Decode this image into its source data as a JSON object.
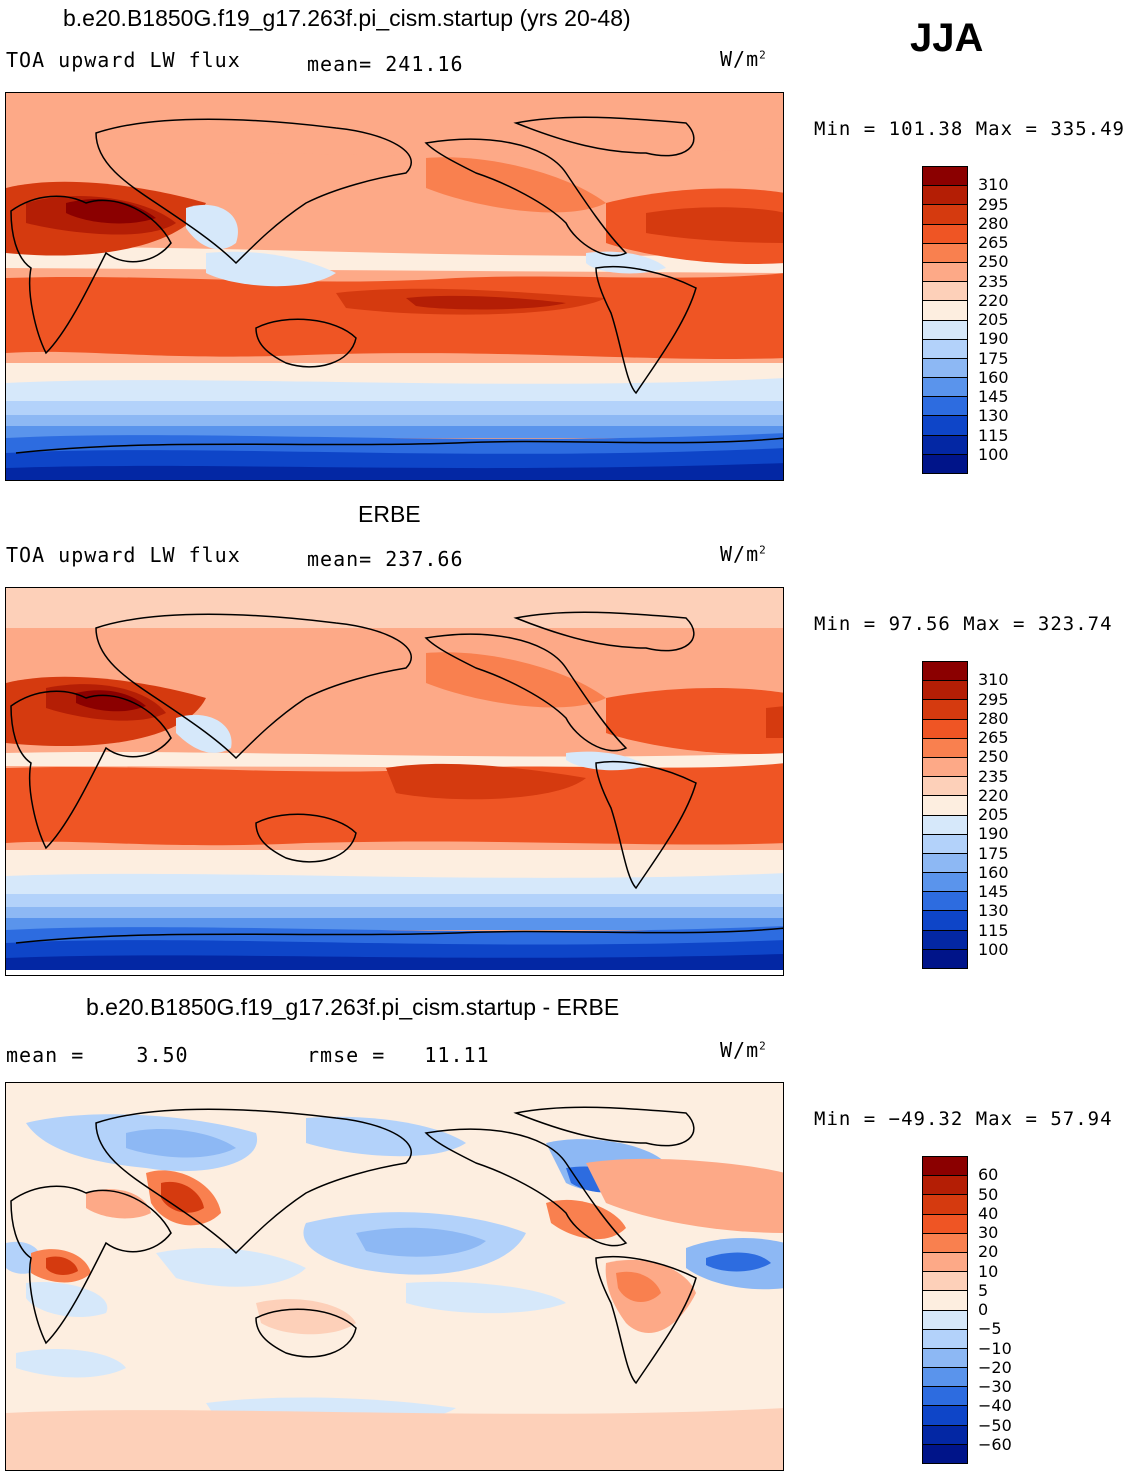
{
  "season": "JJA",
  "panels": [
    {
      "title": "b.e20.B1850G.f19_g17.263f.pi_cism.startup (yrs 20-48)",
      "left_label": "TOA upward LW flux",
      "center_label": "mean= 241.16",
      "unit_base": "W/m",
      "unit_exp": "2",
      "minmax": "Min = 101.38 Max = 335.49",
      "colorbar_labels": [
        "310",
        "295",
        "280",
        "265",
        "250",
        "235",
        "220",
        "205",
        "190",
        "175",
        "160",
        "145",
        "130",
        "115",
        "100"
      ],
      "colors": [
        "#8b0000",
        "#b41e05",
        "#d53a0f",
        "#ef5524",
        "#f9804f",
        "#fda987",
        "#fdd0b9",
        "#fdeee0",
        "#d6e8fa",
        "#b3d2fa",
        "#8db8f4",
        "#5a94ec",
        "#2d6ce0",
        "#0e45c8",
        "#0327a4",
        "#001489"
      ]
    },
    {
      "title": "ERBE",
      "left_label": "TOA upward LW flux",
      "center_label": "mean= 237.66",
      "unit_base": "W/m",
      "unit_exp": "2",
      "minmax": "Min =  97.56 Max = 323.74",
      "colorbar_labels": [
        "310",
        "295",
        "280",
        "265",
        "250",
        "235",
        "220",
        "205",
        "190",
        "175",
        "160",
        "145",
        "130",
        "115",
        "100"
      ],
      "colors": [
        "#8b0000",
        "#b41e05",
        "#d53a0f",
        "#ef5524",
        "#f9804f",
        "#fda987",
        "#fdd0b9",
        "#fdeee0",
        "#d6e8fa",
        "#b3d2fa",
        "#8db8f4",
        "#5a94ec",
        "#2d6ce0",
        "#0e45c8",
        "#0327a4",
        "#001489"
      ]
    },
    {
      "title": "b.e20.B1850G.f19_g17.263f.pi_cism.startup - ERBE",
      "left_label": "mean =    3.50",
      "center_label": "rmse =   11.11",
      "unit_base": "W/m",
      "unit_exp": "2",
      "minmax": "Min = −49.32 Max =  57.94",
      "colorbar_labels": [
        "60",
        "50",
        "40",
        "30",
        "20",
        "10",
        "5",
        "0",
        "−5",
        "−10",
        "−20",
        "−30",
        "−40",
        "−50",
        "−60"
      ],
      "colors": [
        "#8b0000",
        "#b41e05",
        "#d53a0f",
        "#ef5524",
        "#f9804f",
        "#fda987",
        "#fdd0b9",
        "#fdeee0",
        "#d6e8fa",
        "#b3d2fa",
        "#8db8f4",
        "#5a94ec",
        "#2d6ce0",
        "#0e45c8",
        "#0327a4",
        "#001489"
      ]
    }
  ]
}
